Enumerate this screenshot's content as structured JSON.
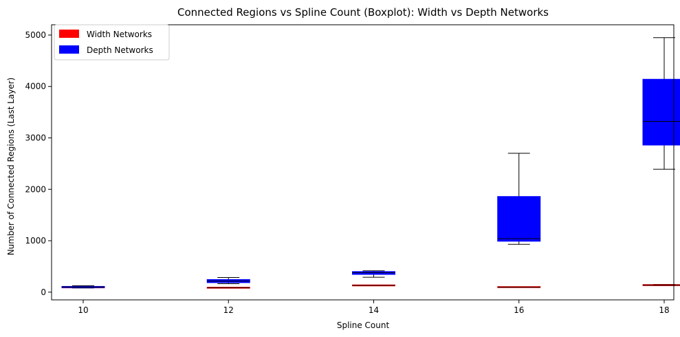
{
  "chart_data": {
    "type": "boxplot",
    "title": "Connected Regions vs Spline Count (Boxplot): Width vs Depth Networks",
    "xlabel": "Spline Count",
    "ylabel": "Number of Connected Regions (Last Layer)",
    "categories": [
      "10",
      "12",
      "14",
      "16",
      "18"
    ],
    "yticks": [
      "0",
      "1000",
      "2000",
      "3000",
      "4000",
      "5000"
    ],
    "ylim": [
      -150,
      5200
    ],
    "legend_position": "upper-left",
    "series": [
      {
        "name": "Width Networks",
        "color": "#ff0000",
        "boxes": [
          {
            "category": "10",
            "whisker_low": 88,
            "q1": 90,
            "median": 93,
            "q3": 96,
            "whisker_high": 98
          },
          {
            "category": "12",
            "whisker_low": 80,
            "q1": 83,
            "median": 86,
            "q3": 89,
            "whisker_high": 92
          },
          {
            "category": "14",
            "whisker_low": 125,
            "q1": 128,
            "median": 131,
            "q3": 134,
            "whisker_high": 137
          },
          {
            "category": "16",
            "whisker_low": 92,
            "q1": 95,
            "median": 98,
            "q3": 101,
            "whisker_high": 104
          },
          {
            "category": "18",
            "whisker_low": 128,
            "q1": 132,
            "median": 137,
            "q3": 142,
            "whisker_high": 150
          }
        ]
      },
      {
        "name": "Depth Networks",
        "color": "#0000ff",
        "boxes": [
          {
            "category": "10",
            "whisker_low": 80,
            "q1": 88,
            "median": 100,
            "q3": 112,
            "whisker_high": 125
          },
          {
            "category": "12",
            "whisker_low": 165,
            "q1": 185,
            "median": 215,
            "q3": 245,
            "whisker_high": 285
          },
          {
            "category": "14",
            "whisker_low": 290,
            "q1": 345,
            "median": 380,
            "q3": 400,
            "whisker_high": 415
          },
          {
            "category": "16",
            "whisker_low": 930,
            "q1": 990,
            "median": 1040,
            "q3": 1860,
            "whisker_high": 2700
          },
          {
            "category": "18",
            "whisker_low": 2390,
            "q1": 2860,
            "median": 3320,
            "q3": 4140,
            "whisker_high": 4950
          }
        ]
      }
    ]
  }
}
